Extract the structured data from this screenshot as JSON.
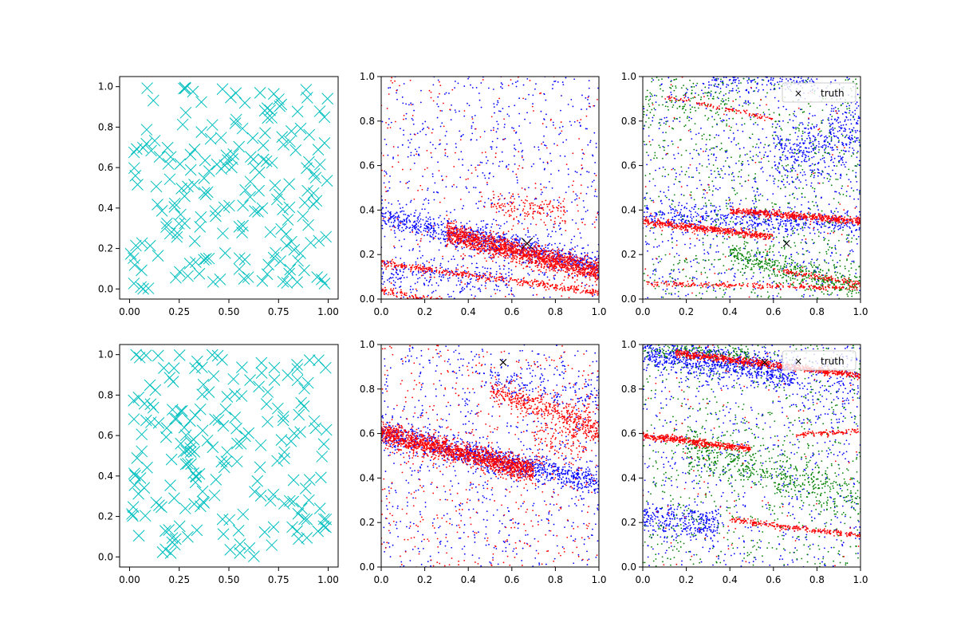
{
  "chart_data": [
    {
      "type": "scatter",
      "panel": "top-left",
      "xlim": [
        -0.05,
        1.05
      ],
      "ylim": [
        -0.05,
        1.05
      ],
      "xticks": [
        "0.00",
        "0.25",
        "0.50",
        "0.75",
        "1.00"
      ],
      "yticks": [
        "0.0",
        "0.2",
        "0.4",
        "0.6",
        "0.8",
        "1.0"
      ],
      "marker": "x-large",
      "series": [
        {
          "color": "#00bfbf",
          "count": 200,
          "seed": 11,
          "clusters": []
        }
      ],
      "truth": null,
      "legend": null
    },
    {
      "type": "scatter",
      "panel": "top-middle",
      "xlim": [
        0,
        1
      ],
      "ylim": [
        0,
        1
      ],
      "xticks": [
        "0.0",
        "0.2",
        "0.4",
        "0.6",
        "0.8",
        "1.0"
      ],
      "yticks": [
        "0.0",
        "0.2",
        "0.4",
        "0.6",
        "0.8",
        "1.0"
      ],
      "marker": "dot",
      "series": [
        {
          "color": "#0000ff",
          "seed": 21,
          "uniform": 700,
          "bands": [
            {
              "x": [
                0,
                1
              ],
              "y0": 0.37,
              "slope": -0.22,
              "w": 0.03,
              "n": 900
            },
            {
              "x": [
                0,
                0.6
              ],
              "y0": 0.12,
              "slope": -0.05,
              "w": 0.04,
              "n": 200
            }
          ]
        },
        {
          "color": "#ff0000",
          "seed": 22,
          "uniform": 250,
          "bands": [
            {
              "x": [
                0.3,
                1
              ],
              "y0": 0.37,
              "slope": -0.25,
              "w": 0.025,
              "n": 1500
            },
            {
              "x": [
                0,
                1
              ],
              "y0": 0.16,
              "slope": -0.13,
              "w": 0.008,
              "n": 400
            },
            {
              "x": [
                0,
                0.3
              ],
              "y0": 0.04,
              "slope": -0.2,
              "w": 0.008,
              "n": 120
            },
            {
              "x": [
                0.5,
                0.85
              ],
              "y0": 0.48,
              "slope": -0.1,
              "w": 0.03,
              "n": 150
            }
          ]
        }
      ],
      "truth": {
        "x": 0.67,
        "y": 0.25,
        "size": "large"
      },
      "legend": null
    },
    {
      "type": "scatter",
      "panel": "top-right",
      "xlim": [
        0,
        1
      ],
      "ylim": [
        0,
        1
      ],
      "xticks": [
        "0.0",
        "0.2",
        "0.4",
        "0.6",
        "0.8",
        "1.0"
      ],
      "yticks": [
        "0.0",
        "0.2",
        "0.4",
        "0.6",
        "0.8",
        "1.0"
      ],
      "marker": "dot",
      "series": [
        {
          "color": "#0000ff",
          "seed": 31,
          "uniform": 800,
          "bands": [
            {
              "x": [
                0,
                1
              ],
              "y0": 0.38,
              "slope": -0.05,
              "w": 0.03,
              "n": 500
            },
            {
              "x": [
                0.6,
                1
              ],
              "y0": 0.45,
              "slope": 0.3,
              "w": 0.08,
              "n": 400
            },
            {
              "x": [
                0.3,
                0.8
              ],
              "y0": 0.98,
              "slope": 0,
              "w": 0.02,
              "n": 150
            }
          ]
        },
        {
          "color": "#008000",
          "seed": 32,
          "uniform": 800,
          "bands": [
            {
              "x": [
                0.4,
                1
              ],
              "y0": 0.3,
              "slope": -0.25,
              "w": 0.03,
              "n": 400
            },
            {
              "x": [
                0,
                0.4
              ],
              "y0": 0.9,
              "slope": 0,
              "w": 0.05,
              "n": 100
            }
          ]
        },
        {
          "color": "#ff0000",
          "seed": 33,
          "uniform": 100,
          "bands": [
            {
              "x": [
                0,
                0.6
              ],
              "y0": 0.35,
              "slope": -0.12,
              "w": 0.008,
              "n": 500
            },
            {
              "x": [
                0.4,
                1
              ],
              "y0": 0.43,
              "slope": -0.08,
              "w": 0.008,
              "n": 500
            },
            {
              "x": [
                0,
                1
              ],
              "y0": 0.07,
              "slope": -0.02,
              "w": 0.006,
              "n": 250
            },
            {
              "x": [
                0.6,
                1
              ],
              "y0": 0.22,
              "slope": -0.15,
              "w": 0.006,
              "n": 120
            },
            {
              "x": [
                0.1,
                0.6
              ],
              "y0": 0.93,
              "slope": -0.2,
              "w": 0.006,
              "n": 100
            }
          ]
        }
      ],
      "truth": {
        "x": 0.66,
        "y": 0.25,
        "size": "small"
      },
      "legend": {
        "position": "upper-right",
        "marker": "×",
        "label": "truth"
      }
    },
    {
      "type": "scatter",
      "panel": "bottom-left",
      "xlim": [
        -0.05,
        1.05
      ],
      "ylim": [
        -0.05,
        1.05
      ],
      "xticks": [
        "0.00",
        "0.25",
        "0.50",
        "0.75",
        "1.00"
      ],
      "yticks": [
        "0.0",
        "0.2",
        "0.4",
        "0.6",
        "0.8",
        "1.0"
      ],
      "marker": "x-large",
      "series": [
        {
          "color": "#00bfbf",
          "count": 200,
          "seed": 41,
          "clusters": []
        }
      ],
      "truth": null,
      "legend": null
    },
    {
      "type": "scatter",
      "panel": "bottom-middle",
      "xlim": [
        0,
        1
      ],
      "ylim": [
        0,
        1
      ],
      "xticks": [
        "0.0",
        "0.2",
        "0.4",
        "0.6",
        "0.8",
        "1.0"
      ],
      "yticks": [
        "0.0",
        "0.2",
        "0.4",
        "0.6",
        "0.8",
        "1.0"
      ],
      "marker": "dot",
      "series": [
        {
          "color": "#0000ff",
          "seed": 51,
          "uniform": 700,
          "bands": [
            {
              "x": [
                0,
                1
              ],
              "y0": 0.6,
              "slope": -0.22,
              "w": 0.03,
              "n": 1000
            },
            {
              "x": [
                0.5,
                1
              ],
              "y0": 0.95,
              "slope": -0.2,
              "w": 0.04,
              "n": 150
            }
          ]
        },
        {
          "color": "#ff0000",
          "seed": 52,
          "uniform": 500,
          "bands": [
            {
              "x": [
                0,
                0.7
              ],
              "y0": 0.6,
              "slope": -0.24,
              "w": 0.025,
              "n": 1500
            },
            {
              "x": [
                0.5,
                1
              ],
              "y0": 0.97,
              "slope": -0.35,
              "w": 0.03,
              "n": 400
            },
            {
              "x": [
                0.7,
                1
              ],
              "y0": 0.35,
              "slope": 0.3,
              "w": 0.08,
              "n": 200
            }
          ]
        }
      ],
      "truth": {
        "x": 0.56,
        "y": 0.92,
        "size": "small"
      },
      "legend": null
    },
    {
      "type": "scatter",
      "panel": "bottom-right",
      "xlim": [
        0,
        1
      ],
      "ylim": [
        0,
        1
      ],
      "xticks": [
        "0.0",
        "0.2",
        "0.4",
        "0.6",
        "0.8",
        "1.0"
      ],
      "yticks": [
        "0.0",
        "0.2",
        "0.4",
        "0.6",
        "0.8",
        "1.0"
      ],
      "marker": "dot",
      "series": [
        {
          "color": "#0000ff",
          "seed": 61,
          "uniform": 700,
          "bands": [
            {
              "x": [
                0,
                0.7
              ],
              "y0": 0.97,
              "slope": -0.15,
              "w": 0.04,
              "n": 900
            },
            {
              "x": [
                0,
                0.35
              ],
              "y0": 0.22,
              "slope": -0.1,
              "w": 0.04,
              "n": 300
            },
            {
              "x": [
                0.7,
                1
              ],
              "y0": 0.85,
              "slope": 0,
              "w": 0.1,
              "n": 150
            }
          ]
        },
        {
          "color": "#008000",
          "seed": 62,
          "uniform": 700,
          "bands": [
            {
              "x": [
                0.2,
                1
              ],
              "y0": 0.6,
              "slope": -0.3,
              "w": 0.05,
              "n": 500
            },
            {
              "x": [
                0,
                0.5
              ],
              "y0": 0.98,
              "slope": -0.05,
              "w": 0.02,
              "n": 150
            }
          ]
        },
        {
          "color": "#ff0000",
          "seed": 63,
          "uniform": 100,
          "bands": [
            {
              "x": [
                0.15,
                1
              ],
              "y0": 0.98,
              "slope": -0.12,
              "w": 0.008,
              "n": 700
            },
            {
              "x": [
                0,
                0.5
              ],
              "y0": 0.59,
              "slope": -0.12,
              "w": 0.008,
              "n": 450
            },
            {
              "x": [
                0.4,
                1
              ],
              "y0": 0.26,
              "slope": -0.12,
              "w": 0.006,
              "n": 250
            },
            {
              "x": [
                0.7,
                1
              ],
              "y0": 0.56,
              "slope": 0.05,
              "w": 0.006,
              "n": 100
            }
          ]
        }
      ],
      "truth": {
        "x": 0.56,
        "y": 0.92,
        "size": "small"
      },
      "legend": {
        "position": "upper-right",
        "marker": "×",
        "label": "truth"
      }
    }
  ]
}
